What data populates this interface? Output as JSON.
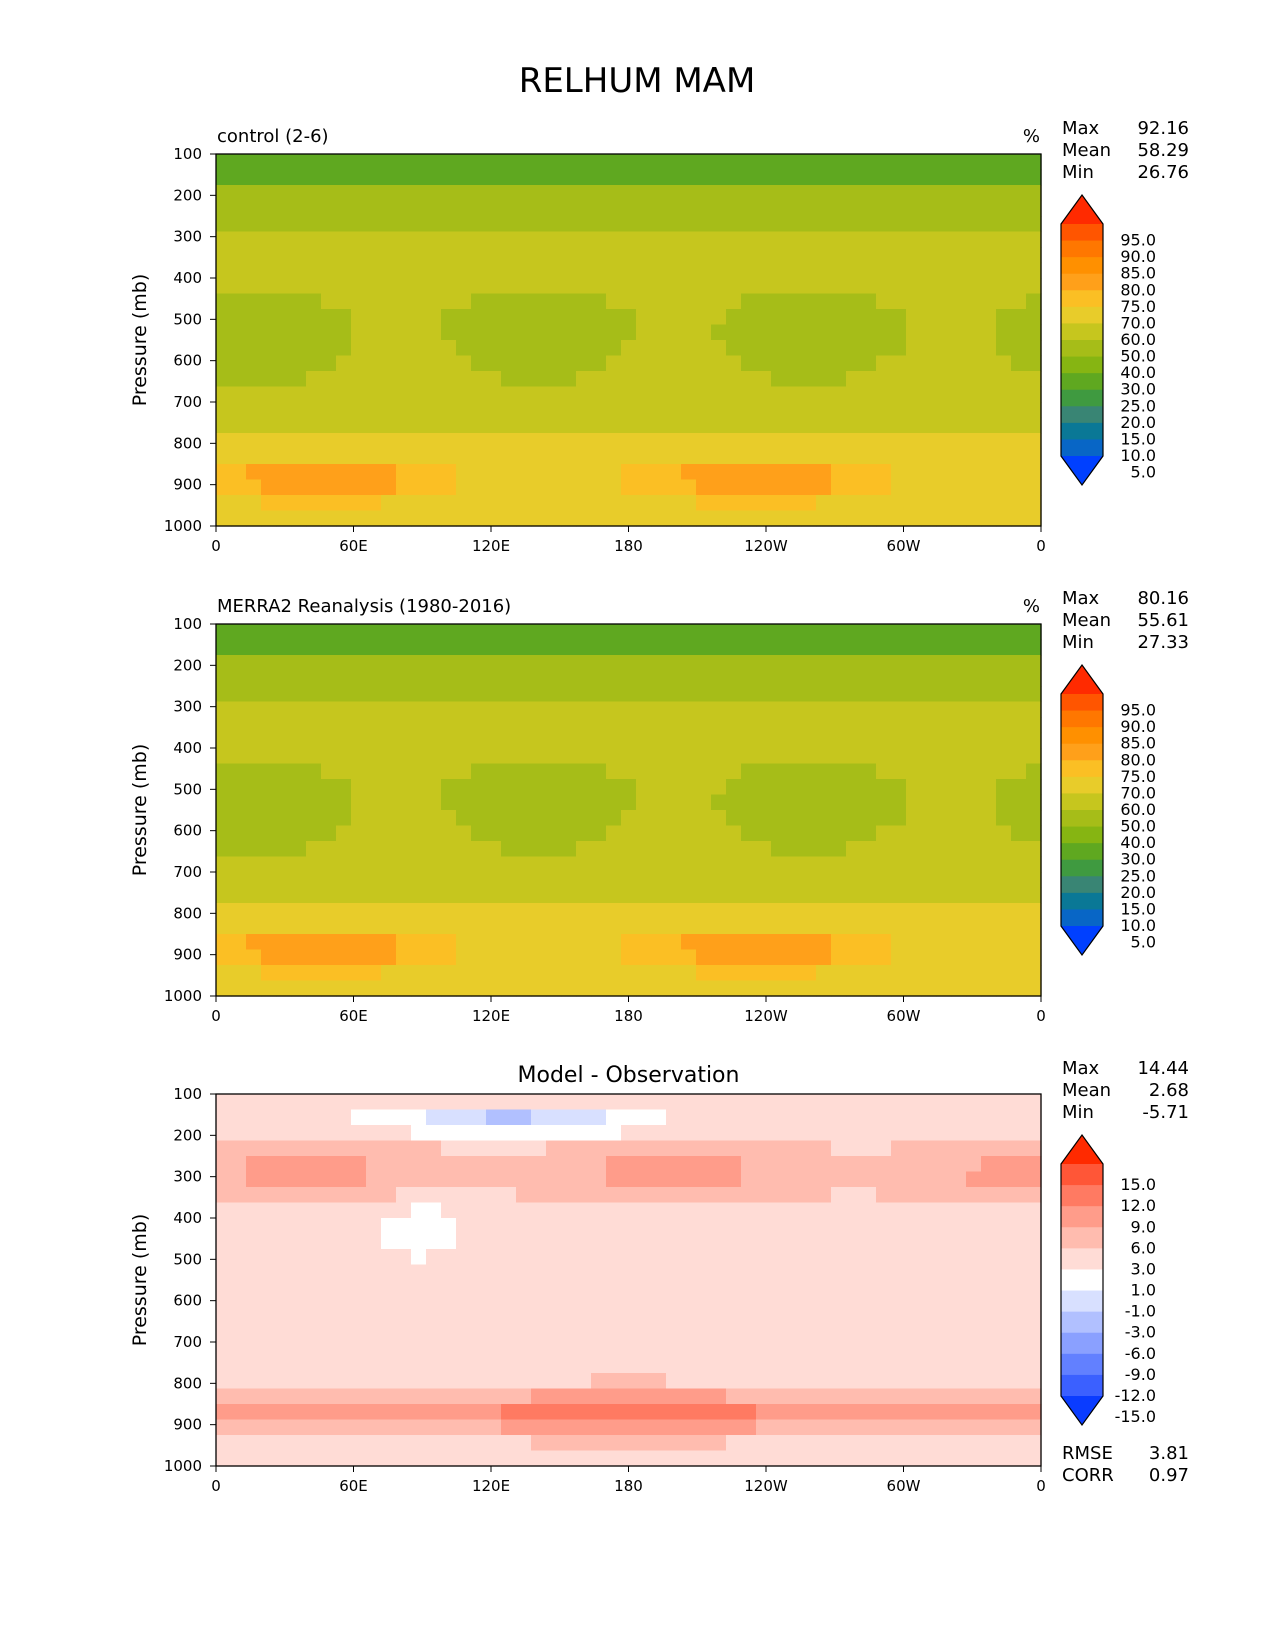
{
  "figure_title": "RELHUM MAM",
  "chart_data": [
    {
      "type": "contour",
      "title": "control (2-6)",
      "units": "%",
      "ylabel": "Pressure (mb)",
      "xlabel": "",
      "x_ticks": [
        "0",
        "60E",
        "120E",
        "180",
        "120W",
        "60W",
        "0"
      ],
      "y_ticks": [
        "100",
        "200",
        "300",
        "400",
        "500",
        "600",
        "700",
        "800",
        "900",
        "1000"
      ],
      "ylim": [
        1000,
        100
      ],
      "stats": [
        {
          "label": "Max",
          "value": "92.16"
        },
        {
          "label": "Mean",
          "value": "58.29"
        },
        {
          "label": "Min",
          "value": "26.76"
        }
      ],
      "colorbar": {
        "levels": [
          "95.0",
          "90.0",
          "85.0",
          "80.0",
          "75.0",
          "70.0",
          "60.0",
          "50.0",
          "40.0",
          "30.0",
          "25.0",
          "20.0",
          "15.0",
          "10.0",
          "5.0"
        ],
        "colors": [
          "#ff2a00",
          "#ff5500",
          "#ff7700",
          "#ff9000",
          "#ffa01a",
          "#fbbf24",
          "#e8cc2a",
          "#c6c61e",
          "#a6bd18",
          "#86b512",
          "#5fa820",
          "#3f9a40",
          "#398574",
          "#0a7896",
          "#0866c6",
          "#0040ff"
        ]
      }
    },
    {
      "type": "contour",
      "title": "MERRA2 Reanalysis (1980-2016)",
      "units": "%",
      "ylabel": "Pressure (mb)",
      "xlabel": "",
      "x_ticks": [
        "0",
        "60E",
        "120E",
        "180",
        "120W",
        "60W",
        "0"
      ],
      "y_ticks": [
        "100",
        "200",
        "300",
        "400",
        "500",
        "600",
        "700",
        "800",
        "900",
        "1000"
      ],
      "ylim": [
        1000,
        100
      ],
      "stats": [
        {
          "label": "Max",
          "value": "80.16"
        },
        {
          "label": "Mean",
          "value": "55.61"
        },
        {
          "label": "Min",
          "value": "27.33"
        }
      ],
      "colorbar": {
        "levels": [
          "95.0",
          "90.0",
          "85.0",
          "80.0",
          "75.0",
          "70.0",
          "60.0",
          "50.0",
          "40.0",
          "30.0",
          "25.0",
          "20.0",
          "15.0",
          "10.0",
          "5.0"
        ],
        "colors": [
          "#ff2a00",
          "#ff5500",
          "#ff7700",
          "#ff9000",
          "#ffa01a",
          "#fbbf24",
          "#e8cc2a",
          "#c6c61e",
          "#a6bd18",
          "#86b512",
          "#5fa820",
          "#3f9a40",
          "#398574",
          "#0a7896",
          "#0866c6",
          "#0040ff"
        ]
      }
    },
    {
      "type": "contour",
      "title": "Model - Observation",
      "units": "",
      "ylabel": "Pressure (mb)",
      "xlabel": "",
      "x_ticks": [
        "0",
        "60E",
        "120E",
        "180",
        "120W",
        "60W",
        "0"
      ],
      "y_ticks": [
        "100",
        "200",
        "300",
        "400",
        "500",
        "600",
        "700",
        "800",
        "900",
        "1000"
      ],
      "ylim": [
        1000,
        100
      ],
      "stats": [
        {
          "label": "Max",
          "value": "14.44"
        },
        {
          "label": "Mean",
          "value": "2.68"
        },
        {
          "label": "Min",
          "value": "-5.71"
        }
      ],
      "extra_stats": [
        {
          "label": "RMSE",
          "value": "3.81"
        },
        {
          "label": "CORR",
          "value": "0.97"
        }
      ],
      "colorbar": {
        "levels": [
          "15.0",
          "12.0",
          "9.0",
          "6.0",
          "3.0",
          "1.0",
          "-1.0",
          "-3.0",
          "-6.0",
          "-9.0",
          "-12.0",
          "-15.0"
        ],
        "colors": [
          "#ff2a00",
          "#ff5637",
          "#ff7a62",
          "#ff9c8a",
          "#ffbcaf",
          "#ffdcd6",
          "#ffffff",
          "#d8e0ff",
          "#b1c0ff",
          "#8aa0ff",
          "#6280ff",
          "#3b60ff",
          "#0a3cff"
        ]
      }
    }
  ]
}
